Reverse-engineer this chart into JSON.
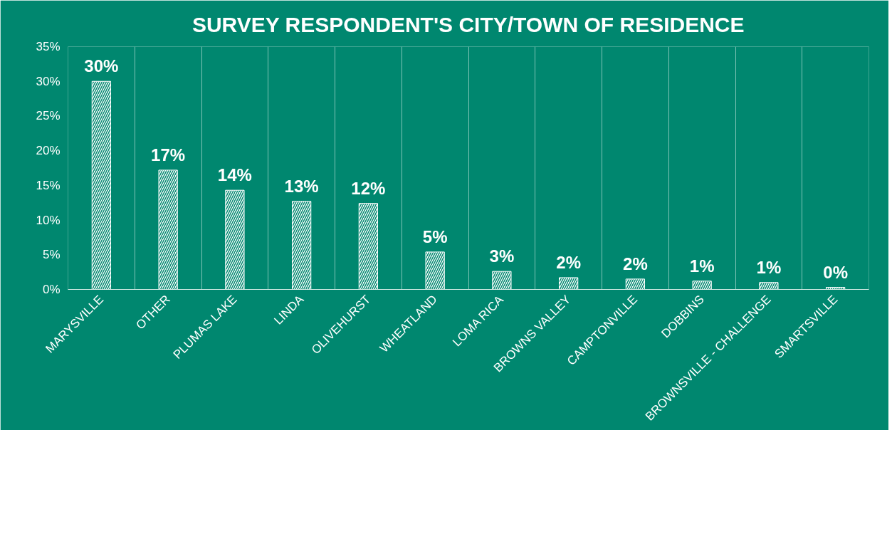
{
  "chart_data": {
    "type": "bar",
    "title": "SURVEY RESPONDENT'S CITY/TOWN OF RESIDENCE",
    "categories": [
      "MARYSVILLE",
      "OTHER",
      "PLUMAS LAKE",
      "LINDA",
      "OLIVEHURST",
      "WHEATLAND",
      "LOMA RICA",
      "BROWNS VALLEY",
      "CAMPTONVILLE",
      "DOBBINS",
      "BROWNSVILLE - CHALLENGE",
      "SMARTSVILLE"
    ],
    "values": [
      30,
      17.2,
      14.3,
      12.7,
      12.4,
      5.4,
      2.6,
      1.7,
      1.5,
      1.2,
      1.0,
      0.3
    ],
    "value_labels": [
      "30%",
      "17%",
      "14%",
      "13%",
      "12%",
      "5%",
      "3%",
      "2%",
      "2%",
      "1%",
      "1%",
      "0%"
    ],
    "color": "#ffffff",
    "ylim": [
      0,
      35
    ],
    "yticks": [
      {
        "value": 0,
        "label": "0%"
      },
      {
        "value": 5,
        "label": "5%"
      },
      {
        "value": 10,
        "label": "10%"
      },
      {
        "value": 15,
        "label": "15%"
      },
      {
        "value": 20,
        "label": "20%"
      },
      {
        "value": 25,
        "label": "25%"
      },
      {
        "value": 30,
        "label": "30%"
      },
      {
        "value": 35,
        "label": "35%"
      }
    ],
    "grid": "x"
  }
}
